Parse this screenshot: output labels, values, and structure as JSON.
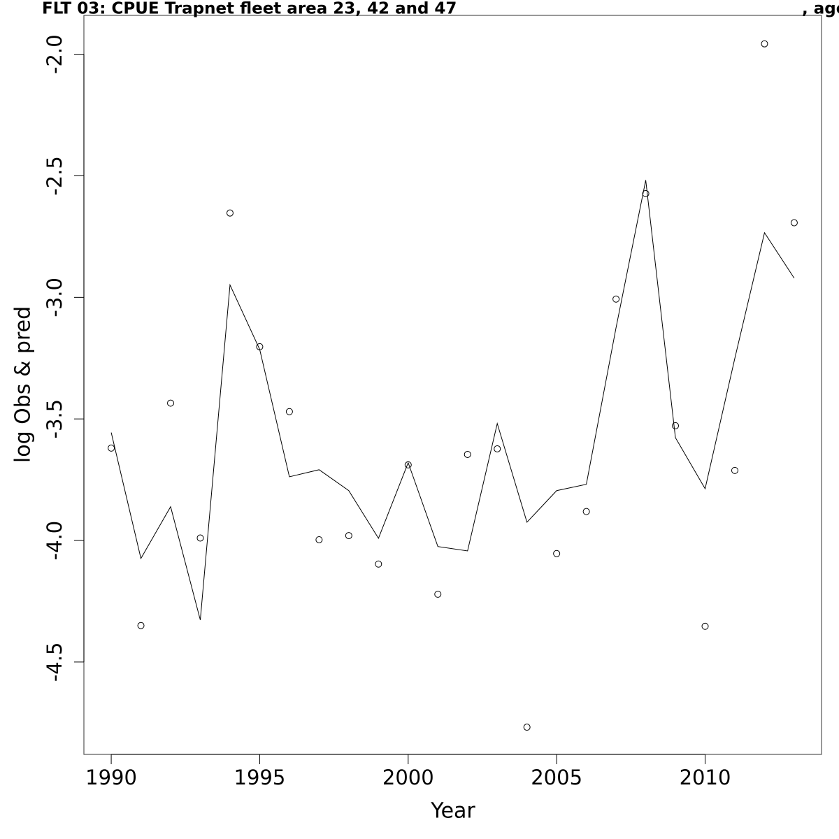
{
  "chart_data": {
    "type": "line",
    "title": "FLT 03: CPUE Trapnet fleet area 23, 42 and 47",
    "title_suffix": ", age",
    "x_label": "Year",
    "y_label": "log Obs & pred",
    "x": [
      1990,
      1991,
      1992,
      1993,
      1994,
      1995,
      1996,
      1997,
      1998,
      1999,
      2000,
      2001,
      2002,
      2003,
      2004,
      2005,
      2006,
      2007,
      2008,
      2009,
      2010,
      2011,
      2012,
      2013
    ],
    "series": [
      {
        "marker": "circle",
        "color": "#000000",
        "values": [
          -3.62,
          -4.35,
          -3.435,
          -3.99,
          -2.653,
          -3.203,
          -3.47,
          -3.997,
          -3.98,
          -4.097,
          -3.689,
          -4.221,
          -3.646,
          -3.623,
          -4.768,
          -4.054,
          -3.881,
          -3.007,
          -2.573,
          -3.528,
          -4.353,
          -3.712,
          -1.957,
          -2.693
        ]
      },
      {
        "marker": "none",
        "color": "#000000",
        "values": [
          -3.556,
          -4.074,
          -3.861,
          -4.327,
          -2.949,
          -3.214,
          -3.738,
          -3.709,
          -3.795,
          -3.991,
          -3.68,
          -4.025,
          -4.043,
          -3.519,
          -3.925,
          -3.795,
          -3.769,
          -3.125,
          -2.518,
          -3.577,
          -3.787,
          -3.251,
          -2.734,
          -2.921
        ]
      }
    ],
    "xlim": [
      1989.08,
      2013.92
    ],
    "ylim": [
      -4.88,
      -1.84
    ],
    "xticks": [
      1990,
      1995,
      2000,
      2005,
      2010
    ],
    "yticks": [
      {
        "value": -2,
        "label": "-2.0"
      },
      -2.5,
      {
        "value": -3,
        "label": "-3.0"
      },
      -3.5,
      {
        "value": -4,
        "label": "-4.0"
      },
      -4.5
    ]
  }
}
